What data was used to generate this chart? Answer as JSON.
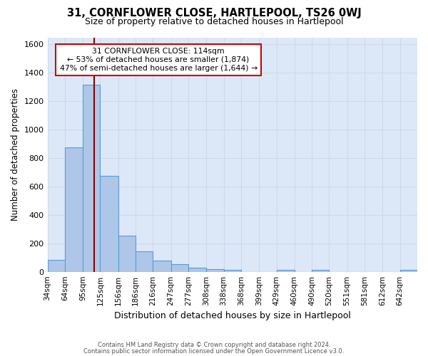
{
  "title": "31, CORNFLOWER CLOSE, HARTLEPOOL, TS26 0WJ",
  "subtitle": "Size of property relative to detached houses in Hartlepool",
  "xlabel": "Distribution of detached houses by size in Hartlepool",
  "ylabel": "Number of detached properties",
  "bin_labels": [
    "34sqm",
    "64sqm",
    "95sqm",
    "125sqm",
    "156sqm",
    "186sqm",
    "216sqm",
    "247sqm",
    "277sqm",
    "308sqm",
    "338sqm",
    "368sqm",
    "399sqm",
    "429sqm",
    "460sqm",
    "490sqm",
    "520sqm",
    "551sqm",
    "581sqm",
    "612sqm",
    "642sqm"
  ],
  "bin_edges_sqm": [
    34,
    64,
    95,
    125,
    156,
    186,
    216,
    247,
    277,
    308,
    338,
    368,
    399,
    429,
    460,
    490,
    520,
    551,
    581,
    612,
    642
  ],
  "bar_values": [
    83,
    878,
    1318,
    675,
    253,
    143,
    78,
    55,
    30,
    20,
    15,
    0,
    0,
    15,
    0,
    15,
    0,
    0,
    0,
    0,
    15
  ],
  "bar_color": "#aec6e8",
  "bar_edge_color": "#5b9bd5",
  "grid_color": "#d0d8e8",
  "background_color": "#dce8f7",
  "property_line_x": 114,
  "property_line_color": "#8b0000",
  "annotation_text_line1": "31 CORNFLOWER CLOSE: 114sqm",
  "annotation_text_line2": "← 53% of detached houses are smaller (1,874)",
  "annotation_text_line3": "47% of semi-detached houses are larger (1,644) →",
  "annotation_box_color": "#ffffff",
  "annotation_box_edge": "#cc0000",
  "ylim": [
    0,
    1650
  ],
  "yticks": [
    0,
    200,
    400,
    600,
    800,
    1000,
    1200,
    1400,
    1600
  ],
  "footer_line1": "Contains HM Land Registry data © Crown copyright and database right 2024.",
  "footer_line2": "Contains public sector information licensed under the Open Government Licence v3.0."
}
